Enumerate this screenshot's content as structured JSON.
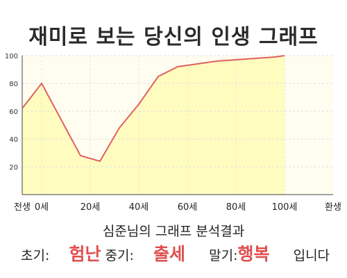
{
  "title": "재미로 보는 당신의 인생 그래프",
  "chart_data": {
    "type": "area",
    "x": [
      -8,
      0,
      16,
      24,
      32,
      40,
      48,
      56,
      64,
      72,
      80,
      88,
      96,
      100
    ],
    "values": [
      62,
      80,
      28,
      24,
      48,
      65,
      85,
      92,
      94,
      96,
      97,
      98,
      99,
      100
    ],
    "xticks": [
      {
        "x": -8,
        "label": "전생"
      },
      {
        "x": 0,
        "label": "0세"
      },
      {
        "x": 20,
        "label": "20세"
      },
      {
        "x": 40,
        "label": "40세"
      },
      {
        "x": 60,
        "label": "60세"
      },
      {
        "x": 80,
        "label": "80세"
      },
      {
        "x": 100,
        "label": "100세"
      },
      {
        "x": 120,
        "label": "환생"
      }
    ],
    "yticks": [
      20,
      40,
      60,
      80,
      100
    ],
    "xlim": [
      -8,
      120
    ],
    "ylim": [
      0,
      100
    ],
    "grid": true,
    "line_color": "#e06060",
    "fill_color": "#fffcc0",
    "plot_bg": "#fffdf0"
  },
  "summary": {
    "title": "심준님의 그래프 분석결과",
    "early_label": "초기:",
    "early_value": "험난",
    "mid_label": "중기:",
    "mid_value": "출세",
    "late_label": "말기:",
    "late_value": "행복",
    "ending": "입니다"
  },
  "colors": {
    "accent": "#e05050"
  }
}
